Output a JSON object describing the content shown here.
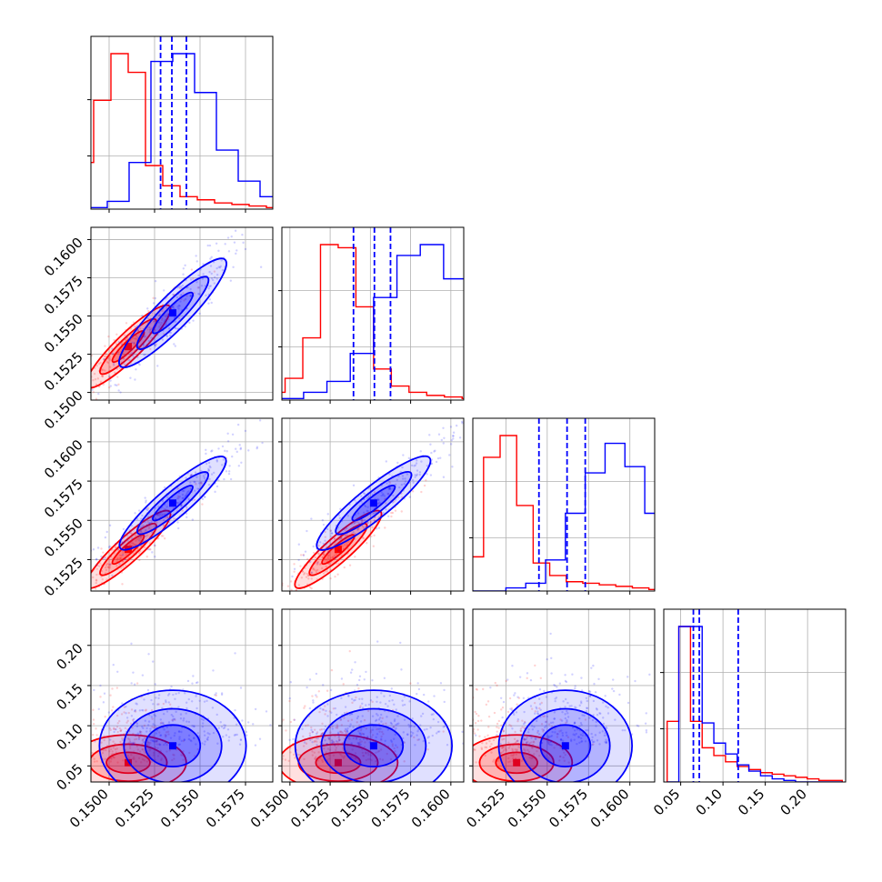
{
  "chart_data": {
    "type": "scatter",
    "kind": "corner-plot",
    "n_params": 4,
    "grid": true,
    "legend": "none",
    "colors": {
      "red": "#ff0000",
      "blue": "#0000ff",
      "grid": "#b0b0b0"
    },
    "params": [
      {
        "range": [
          0.149,
          0.159
        ],
        "ticks": [
          0.15,
          0.1525,
          0.155,
          0.1575
        ],
        "tick_labels": [
          "0.1500",
          "0.1525",
          "0.1550",
          "0.1575"
        ]
      },
      {
        "range": [
          0.1495,
          0.1608
        ],
        "ticks": [
          0.15,
          0.1525,
          0.155,
          0.1575,
          0.16
        ],
        "tick_labels": [
          "0.1500",
          "0.1525",
          "0.1550",
          "0.1575",
          "0.1600"
        ]
      },
      {
        "range": [
          0.1505,
          0.1615
        ],
        "ticks": [
          0.1525,
          0.155,
          0.1575,
          0.16
        ],
        "tick_labels": [
          "0.1525",
          "0.1550",
          "0.1575",
          "0.1600"
        ]
      },
      {
        "range": [
          0.03,
          0.245
        ],
        "ticks": [
          0.05,
          0.1,
          0.15,
          0.2
        ],
        "tick_labels": [
          "0.05",
          "0.10",
          "0.15",
          "0.20"
        ]
      }
    ],
    "quantile_lines": {
      "color": "blue",
      "values": [
        [
          0.15283,
          0.15345,
          0.15425
        ],
        [
          0.15395,
          0.15525,
          0.15625
        ],
        [
          0.1545,
          0.1562,
          0.1573
        ],
        [
          0.065,
          0.072,
          0.118
        ]
      ]
    },
    "series": [
      {
        "color": "red",
        "histograms": [
          [
            0.05,
            0.1,
            0.3,
            0.7,
            1.0,
            0.88,
            0.28,
            0.15,
            0.08,
            0.06,
            0.04,
            0.03,
            0.02,
            0.01,
            0.01
          ],
          [
            0.02,
            0.05,
            0.14,
            0.4,
            1.0,
            0.98,
            0.6,
            0.2,
            0.09,
            0.05,
            0.03,
            0.02,
            0.01,
            0.01,
            0.005
          ],
          [
            0.02,
            0.05,
            0.22,
            0.86,
            1.0,
            0.55,
            0.18,
            0.1,
            0.06,
            0.05,
            0.04,
            0.03,
            0.02,
            0.01,
            0.005
          ],
          [
            0.39,
            1.0,
            0.39,
            0.22,
            0.17,
            0.13,
            0.1,
            0.08,
            0.06,
            0.05,
            0.04,
            0.03,
            0.02,
            0.01,
            0.01
          ]
        ],
        "centers": [
          0.15105,
          0.153,
          0.15315,
          0.054
        ],
        "sigmas": [
          0.00095,
          0.0011,
          0.001,
          0.008
        ]
      },
      {
        "color": "blue",
        "histograms": [
          [
            0.0,
            0.01,
            0.05,
            0.3,
            0.95,
            1.0,
            0.75,
            0.38,
            0.18,
            0.08,
            0.03,
            0.01,
            0.0,
            0.0,
            0.0
          ],
          [
            0.0,
            0.01,
            0.05,
            0.12,
            0.3,
            0.66,
            0.93,
            1.0,
            0.78,
            0.42,
            0.16,
            0.05,
            0.01,
            0.0,
            0.0
          ],
          [
            0.0,
            0.0,
            0.02,
            0.05,
            0.2,
            0.5,
            0.76,
            0.95,
            0.8,
            0.5,
            0.22,
            0.07,
            0.02,
            0.0,
            0.0
          ],
          [
            0.0,
            1.0,
            1.0,
            0.38,
            0.25,
            0.18,
            0.11,
            0.07,
            0.04,
            0.02,
            0.01,
            0.0,
            0.0,
            0.0,
            0.0
          ]
        ],
        "centers": [
          0.1535,
          0.1552,
          0.1561,
          0.075
        ],
        "sigmas": [
          0.0012,
          0.00145,
          0.0012,
          0.016
        ]
      }
    ]
  }
}
